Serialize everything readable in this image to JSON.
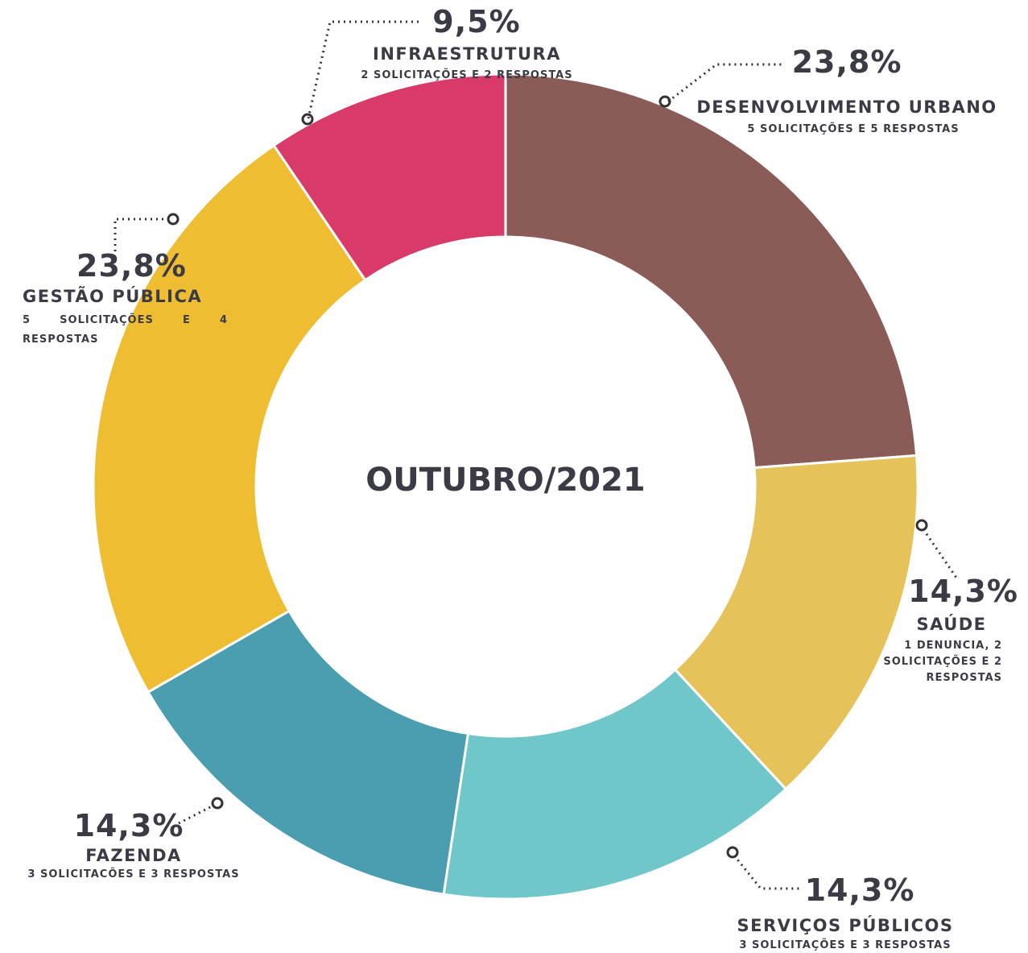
{
  "chart_data": {
    "type": "donut",
    "title": "OUTUBRO/2021",
    "categories": [
      "DESENVOLVIMENTO URBANO",
      "SAÚDE",
      "SERVIÇOS PÚBLICOS",
      "FAZENDA",
      "GESTÃO PÚBLICA",
      "INFRAESTRUTURA"
    ],
    "values": [
      23.8,
      14.3,
      14.3,
      14.3,
      23.8,
      9.5
    ],
    "value_labels": [
      "23,8%",
      "14,3%",
      "14,3%",
      "14,3%",
      "23,8%",
      "9,5%"
    ],
    "descriptions": [
      "5 SOLICITAÇÕES E 5 RESPOSTAS",
      "1 DENUNCIA, 2 SOLICITAÇÕES E 2 RESPOSTAS",
      "3 SOLICITAÇÕES E 3 RESPOSTAS",
      "3 SOLICITACÕES E 3 RESPOSTAS",
      "5 SOLICITAÇÕES E 4 RESPOSTAS",
      "2 SOLICITAÇÕES E 2 RESPOSTAS"
    ],
    "colors": [
      "#8a5b57",
      "#e5c25a",
      "#6fc7c9",
      "#4b9eb0",
      "#eebd31",
      "#d83b69"
    ]
  }
}
